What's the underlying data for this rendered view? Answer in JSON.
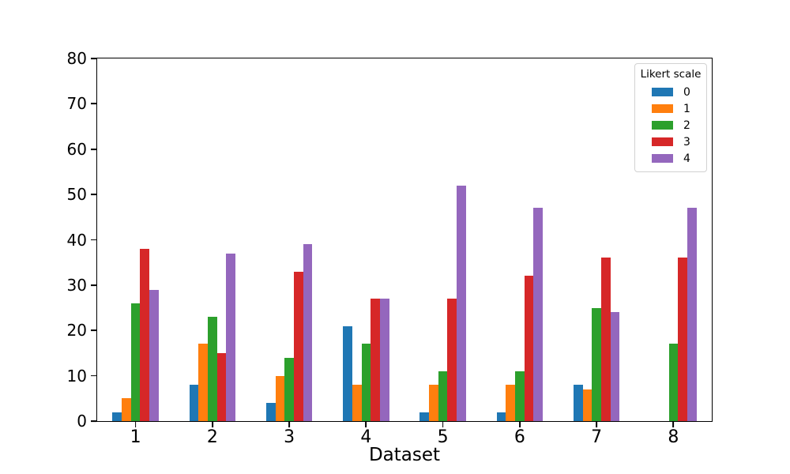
{
  "chart_data": {
    "type": "bar",
    "title": "",
    "xlabel": "Dataset",
    "ylabel": "",
    "categories": [
      "1",
      "2",
      "3",
      "4",
      "5",
      "6",
      "7",
      "8"
    ],
    "series": [
      {
        "name": "0",
        "color": "#1f77b4",
        "values": [
          2,
          8,
          4,
          21,
          2,
          2,
          8,
          0
        ]
      },
      {
        "name": "1",
        "color": "#ff7f0e",
        "values": [
          5,
          17,
          10,
          8,
          8,
          8,
          7,
          0
        ]
      },
      {
        "name": "2",
        "color": "#2ca02c",
        "values": [
          26,
          23,
          14,
          17,
          11,
          11,
          25,
          17
        ]
      },
      {
        "name": "3",
        "color": "#d62728",
        "values": [
          38,
          15,
          33,
          27,
          27,
          32,
          36,
          36
        ]
      },
      {
        "name": "4",
        "color": "#9467bd",
        "values": [
          29,
          37,
          39,
          27,
          52,
          47,
          24,
          47
        ]
      }
    ],
    "legend": {
      "title": "Likert scale",
      "position": "upper right"
    },
    "ylim": [
      0,
      80
    ],
    "yticks": [
      0,
      10,
      20,
      30,
      40,
      50,
      60,
      70,
      80
    ],
    "grid": false,
    "bar_group_width_fraction": 0.6
  },
  "colors": {
    "spine": "#000000",
    "background": "#ffffff",
    "legend_border": "#d2d2d2"
  }
}
